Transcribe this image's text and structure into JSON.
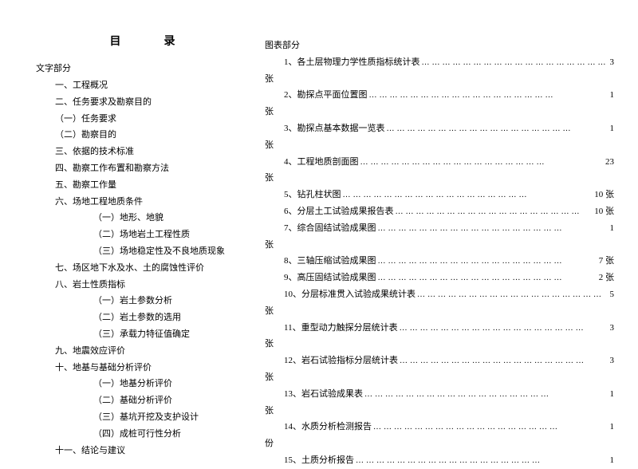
{
  "title": "目　录",
  "leftHeading": "文字部分",
  "left": {
    "i1": "一、工程概况",
    "i2": "二、任务要求及勘察目的",
    "i2a": "（一）任务要求",
    "i2b": "（二）勘察目的",
    "i3": "三、依据的技术标准",
    "i4": "四、勘察工作布置和勘察方法",
    "i5": "五、勘察工作量",
    "i6": "六、场地工程地质条件",
    "i6a": "（一）地形、地貌",
    "i6b": "（二）场地岩土工程性质",
    "i6c": "（三）场地稳定性及不良地质现象",
    "i7": "七、场区地下水及水、土的腐蚀性评价",
    "i8": "八、岩土性质指标",
    "i8a": "（一）岩土参数分析",
    "i8b": "（二）岩土参数的选用",
    "i8c": "（三）承载力特征值确定",
    "i9": "九、地震效应评价",
    "i10": "十、地基与基础分析评价",
    "i10a": "（一）地基分析评价",
    "i10b": "（二）基础分析评价",
    "i10c": "（三）基坑开挖及支护设计",
    "i10d": "（四）成桩可行性分析",
    "i11": "十一、结论与建议"
  },
  "rightHeading": "图表部分",
  "right": [
    {
      "label": "1、各土层物理力学性质指标统计表",
      "count": "3",
      "unit": "张"
    },
    {
      "label": "2、勘探点平面位置图",
      "count": "1",
      "unit": "张"
    },
    {
      "label": "3、勘探点基本数据一览表",
      "count": "1",
      "unit": "张"
    },
    {
      "label": "4、工程地质剖面图",
      "count": "23",
      "unit": "张"
    },
    {
      "label": "5、钻孔柱状图",
      "count": "10 张",
      "unit": ""
    },
    {
      "label": "6、分层土工试验成果报告表",
      "count": "10 张",
      "unit": ""
    },
    {
      "label": "7、综合固结试验成果图",
      "count": "1",
      "unit": "张"
    },
    {
      "label": "8、三轴压缩试验成果图",
      "count": "7 张",
      "unit": ""
    },
    {
      "label": "9、高压固结试验成果图",
      "count": "2 张",
      "unit": ""
    },
    {
      "label": "10、分层标准贯入试验成果统计表",
      "count": "5",
      "unit": "张"
    },
    {
      "label": "11、重型动力触探分层统计表",
      "count": "3",
      "unit": "张"
    },
    {
      "label": "12、岩石试验指标分层统计表",
      "count": "3",
      "unit": "张"
    },
    {
      "label": "13、岩石试验成果表",
      "count": "1",
      "unit": "张"
    },
    {
      "label": "14、水质分析检测报告",
      "count": "1",
      "unit": "份"
    },
    {
      "label": "15、土质分析报告",
      "count": "1",
      "unit": ""
    }
  ],
  "dots": "………………………………………………"
}
